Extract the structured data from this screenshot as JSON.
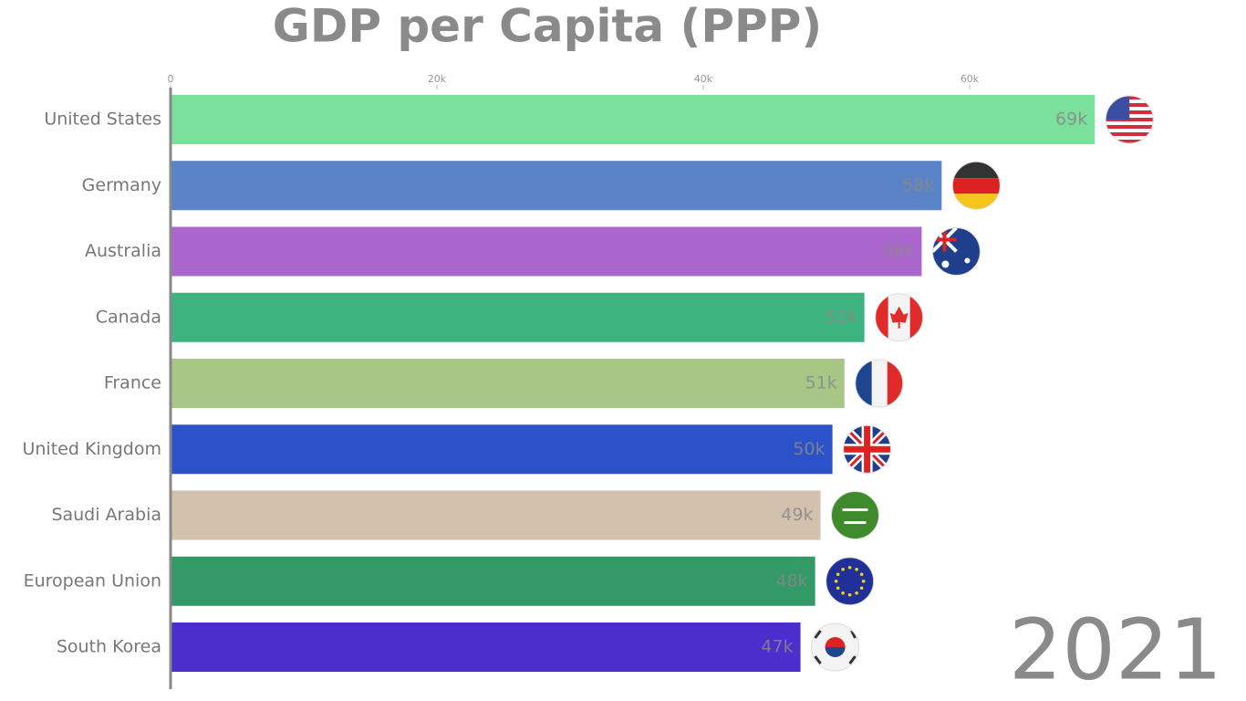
{
  "chart_data": {
    "type": "bar",
    "orientation": "horizontal",
    "title": "GDP per Capita (PPP)",
    "annotation": "2021",
    "categories": [
      "United States",
      "Germany",
      "Australia",
      "Canada",
      "France",
      "United Kingdom",
      "Saudi Arabia",
      "European Union",
      "South Korea"
    ],
    "values": [
      69400,
      57900,
      56400,
      52100,
      50600,
      49700,
      48800,
      48400,
      47300
    ],
    "value_labels": [
      "69k",
      "58k",
      "56k",
      "52k",
      "51k",
      "50k",
      "49k",
      "48k",
      "47k"
    ],
    "colors": [
      "#7ae09c",
      "#5a83c8",
      "#aa66cc",
      "#3db37f",
      "#a8c686",
      "#2c52c9",
      "#d2c1ac",
      "#339966",
      "#4b2ecc"
    ],
    "xlim": [
      0,
      80000
    ],
    "xticks": [
      0,
      {
        "value": 20000,
        "label": "20k"
      },
      {
        "value": 40000,
        "label": "40k"
      },
      {
        "value": 60000,
        "label": "60k"
      }
    ]
  }
}
